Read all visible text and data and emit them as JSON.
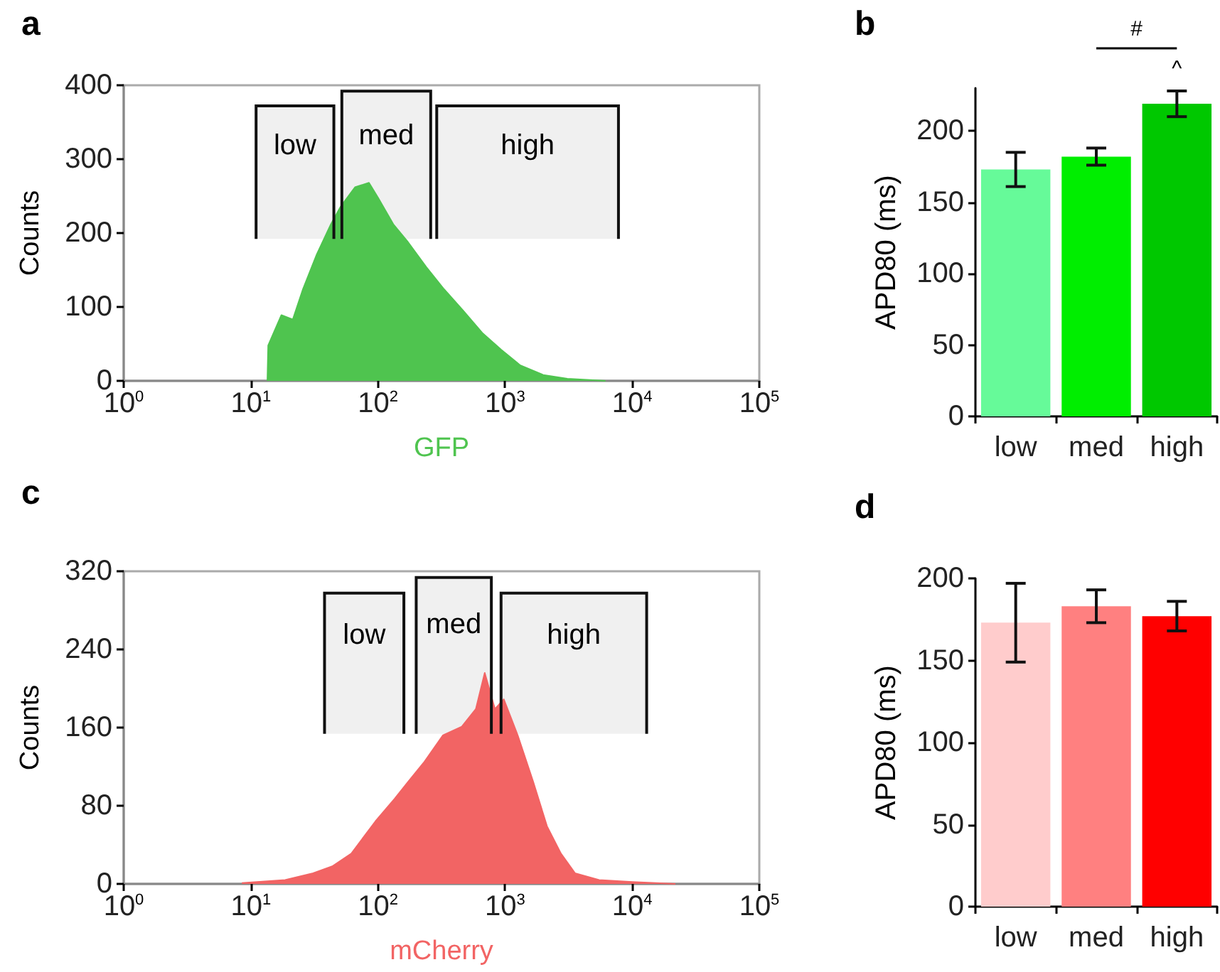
{
  "chart_data": [
    {
      "type": "area",
      "title": "a",
      "xlabel": "GFP",
      "ylabel": "Counts",
      "log": "x",
      "color": "#4fc44f",
      "x": [
        13.5,
        13.7,
        17.4,
        21.4,
        25.7,
        33,
        42.7,
        51,
        66,
        85,
        100,
        132,
        170,
        240,
        331,
        468,
        661,
        933,
        1318,
        1995,
        3090,
        6166
      ],
      "values": [
        0,
        48,
        89,
        83,
        124,
        171,
        212,
        236,
        262,
        268,
        248,
        212,
        189,
        154,
        124,
        95,
        65,
        42,
        21,
        8,
        3,
        0
      ],
      "xlim": [
        1,
        100000
      ],
      "xticks": [
        {
          "value": 1,
          "label": "10$^{0}$"
        },
        {
          "value": 10,
          "label": "10$^{1}$"
        },
        {
          "value": 100,
          "label": "10$^{2}$"
        },
        {
          "value": 1000,
          "label": "10$^{3}$"
        },
        {
          "value": 10000,
          "label": "10$^{4}$"
        },
        {
          "value": 100000,
          "label": "10$^{5}$"
        }
      ],
      "ylim": [
        0,
        400
      ],
      "yticks": [
        0,
        100,
        200,
        300,
        400
      ],
      "bands": [
        {
          "axis": "x",
          "from": 11,
          "to": 45,
          "label": "low"
        },
        {
          "axis": "x",
          "from": 52,
          "to": 260,
          "label": "med"
        },
        {
          "axis": "x",
          "from": 290,
          "to": 7800,
          "label": "high"
        }
      ]
    },
    {
      "type": "bar",
      "title": "b",
      "ylabel": "APD80 (ms)",
      "categories": [
        "low",
        "med",
        "high"
      ],
      "values": [
        173,
        182,
        219
      ],
      "errors": [
        12,
        6,
        9
      ],
      "colors": [
        "#66fa99",
        "#00ee00",
        "#00c800"
      ],
      "ylim": [
        0,
        230
      ],
      "yticks": [
        0,
        50,
        100,
        150,
        200
      ],
      "annotations": [
        "#",
        "^"
      ]
    },
    {
      "type": "area",
      "title": "c",
      "xlabel": "mCherry",
      "ylabel": "Counts",
      "log": "x",
      "color": "#f26464",
      "x": [
        8.5,
        18.6,
        30.9,
        43.7,
        61.7,
        95.5,
        135,
        174,
        229,
        324,
        457,
        589,
        692,
        832,
        977,
        1259,
        1660,
        2138,
        2754,
        3548,
        5495,
        10000,
        21878
      ],
      "values": [
        1,
        4,
        11,
        18,
        31,
        64,
        87,
        105,
        124,
        152,
        161,
        179,
        216,
        179,
        189,
        152,
        105,
        59,
        31,
        11,
        4,
        2,
        0
      ],
      "xlim": [
        1,
        100000
      ],
      "xticks": [
        {
          "value": 1,
          "label": "10$^{0}$"
        },
        {
          "value": 10,
          "label": "10$^{1}$"
        },
        {
          "value": 100,
          "label": "10$^{2}$"
        },
        {
          "value": 1000,
          "label": "10$^{3}$"
        },
        {
          "value": 10000,
          "label": "10$^{4}$"
        },
        {
          "value": 100000,
          "label": "10$^{5}$"
        }
      ],
      "ylim": [
        0,
        320
      ],
      "yticks": [
        0,
        80,
        160,
        240,
        320
      ],
      "bands": [
        {
          "axis": "x",
          "from": 38,
          "to": 160,
          "label": "low"
        },
        {
          "axis": "x",
          "from": 200,
          "to": 780,
          "label": "med"
        },
        {
          "axis": "x",
          "from": 930,
          "to": 13000,
          "label": "high"
        }
      ]
    },
    {
      "type": "bar",
      "title": "d",
      "ylabel": "APD80 (ms)",
      "categories": [
        "low",
        "med",
        "high"
      ],
      "values": [
        173,
        183,
        177
      ],
      "errors": [
        24,
        10,
        9
      ],
      "colors": [
        "#ffcccc",
        "#ff8080",
        "#ff0000"
      ],
      "ylim": [
        0,
        200
      ],
      "yticks": [
        0,
        50,
        100,
        150,
        200
      ]
    }
  ]
}
